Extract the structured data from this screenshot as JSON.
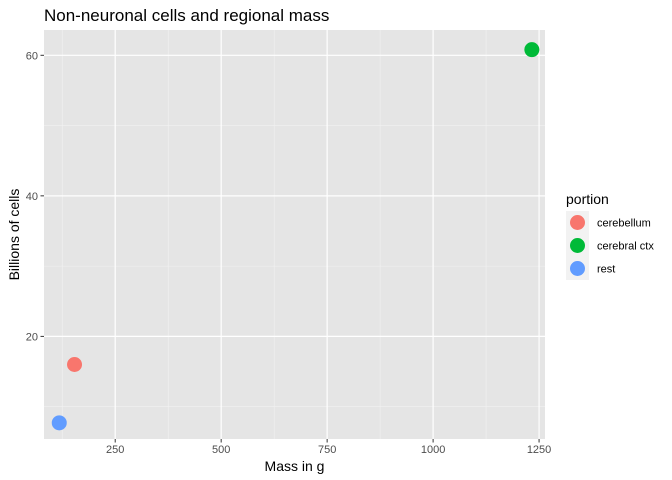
{
  "chart_data": {
    "type": "scatter",
    "title": "Non-neuronal cells and regional mass",
    "xlabel": "Mass in g",
    "ylabel": "Billions of cells",
    "xlim": [
      82,
      1264
    ],
    "ylim": [
      5.4,
      63.6
    ],
    "x_ticks": [
      250,
      500,
      750,
      1000,
      1250
    ],
    "y_ticks": [
      20,
      40,
      60
    ],
    "grid": true,
    "legend": {
      "title": "portion",
      "position": "right"
    },
    "series": [
      {
        "name": "cerebellum",
        "color": "#F8766D",
        "points": [
          {
            "x": 154,
            "y": 16.0
          }
        ]
      },
      {
        "name": "cerebral ctx",
        "color": "#00BA38",
        "points": [
          {
            "x": 1233,
            "y": 60.8
          }
        ]
      },
      {
        "name": "rest",
        "color": "#619CFF",
        "points": [
          {
            "x": 118,
            "y": 7.7
          }
        ]
      }
    ]
  }
}
